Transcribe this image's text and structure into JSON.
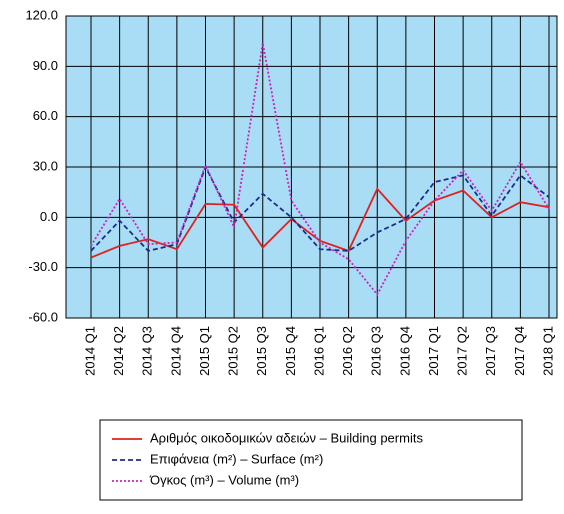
{
  "chart_data": {
    "type": "line",
    "categories": [
      "2014 Q1",
      "2014 Q2",
      "2014 Q3",
      "2014 Q4",
      "2015 Q1",
      "2015 Q2",
      "2015 Q3",
      "2015 Q4",
      "2016 Q1",
      "2016 Q2",
      "2016 Q3",
      "2016 Q4",
      "2017 Q1",
      "2017 Q2",
      "2017 Q3",
      "2017 Q4",
      "2018 Q1"
    ],
    "series": [
      {
        "name": "Αριθμός οικοδομικών αδειών – Building permits",
        "color": "#e02020",
        "style": "solid",
        "values": [
          -24,
          -17,
          -13,
          -19,
          8,
          7.5,
          -18,
          -1,
          -14,
          -20,
          17,
          -2,
          10,
          16,
          0,
          9,
          6
        ]
      },
      {
        "name": "Επιφάνεια (m²) – Surface (m²)",
        "color": "#1a2f8a",
        "style": "dashed",
        "values": [
          -20,
          -2,
          -20,
          -16,
          30,
          -3,
          14,
          0,
          -19,
          -20,
          -9,
          -1,
          21,
          25,
          1,
          25,
          12
        ]
      },
      {
        "name": "Όγκος (m³) – Volume (m³)",
        "color": "#d020c0",
        "style": "dotted",
        "values": [
          -17,
          11,
          -16,
          -15,
          31,
          -6,
          104,
          10,
          -15,
          -25,
          -46,
          -14,
          10,
          28,
          4,
          33,
          5
        ]
      }
    ],
    "ylim": [
      -60,
      120
    ],
    "yticks": [
      {
        "value": -60,
        "label": "-60.0"
      },
      {
        "value": -30,
        "label": "-30.0"
      },
      {
        "value": 0,
        "label": "0.0"
      },
      {
        "value": 30,
        "label": "30.0"
      },
      {
        "value": 60,
        "label": "60.0"
      },
      {
        "value": 90,
        "label": "90.0"
      },
      {
        "value": 120,
        "label": "120.0"
      }
    ],
    "grid": true,
    "background": "#a9ddf5",
    "legend": "bottom"
  }
}
